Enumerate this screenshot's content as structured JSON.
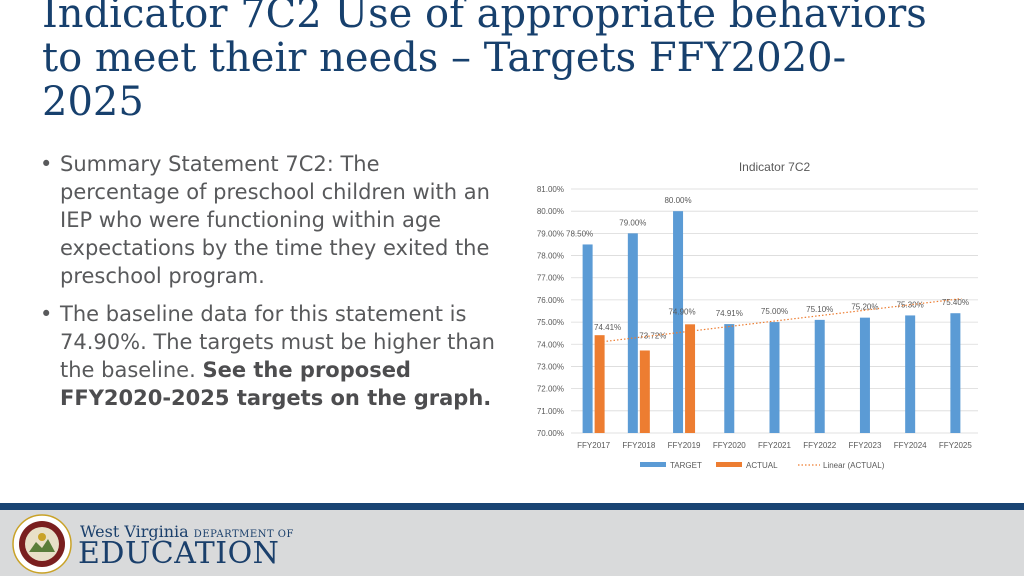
{
  "slide": {
    "title": "Indicator 7C2 Use of appropriate behaviors to meet their needs – Targets FFY2020-2025",
    "bullet1": "Summary Statement 7C2: The percentage of preschool children with an IEP who were functioning within age expectations by the time they exited the preschool program.",
    "bullet2_normal": "The baseline data for this statement is 74.90%.  The targets must be higher than the baseline. ",
    "bullet2_bold": "See the proposed FFY2020-2025 targets on the graph."
  },
  "footer": {
    "logo_line1": "West Virginia",
    "logo_line1_small": "DEPARTMENT OF",
    "logo_line2": "EDUCATION",
    "seal_text": "STATE OF WEST VIRGINIA"
  },
  "colors": {
    "title": "#17406d",
    "target": "#5b9bd5",
    "actual": "#ed7d31",
    "footer_band": "#1a4473",
    "footer_bg": "#d9dadb"
  },
  "chart_data": {
    "type": "bar",
    "title": "Indicator 7C2",
    "categories": [
      "FFY2017",
      "FFY2018",
      "FFY2019",
      "FFY2020",
      "FFY2021",
      "FFY2022",
      "FFY2023",
      "FFY2024",
      "FFY2025"
    ],
    "series": [
      {
        "name": "TARGET",
        "values": [
          78.5,
          79.0,
          80.0,
          74.91,
          75.0,
          75.1,
          75.2,
          75.3,
          75.4
        ],
        "labels": [
          "78.50%",
          "79.00%",
          "80.00%",
          "74.91%",
          "75.00%",
          "75.10%",
          "75.20%",
          "75.30%",
          "75.40%"
        ]
      },
      {
        "name": "ACTUAL",
        "values": [
          74.41,
          73.72,
          74.9,
          null,
          null,
          null,
          null,
          null,
          null
        ],
        "labels": [
          "74.41%",
          "73.72%",
          "74.90%",
          "",
          "",
          "",
          "",
          "",
          ""
        ]
      }
    ],
    "trendline": {
      "name": "Linear (ACTUAL)",
      "type": "linear",
      "based_on": "ACTUAL"
    },
    "ylim": [
      70,
      81
    ],
    "yticks": [
      "70.00%",
      "71.00%",
      "72.00%",
      "73.00%",
      "74.00%",
      "75.00%",
      "76.00%",
      "77.00%",
      "78.00%",
      "79.00%",
      "80.00%",
      "81.00%"
    ],
    "grid": true,
    "legend": "bottom"
  }
}
